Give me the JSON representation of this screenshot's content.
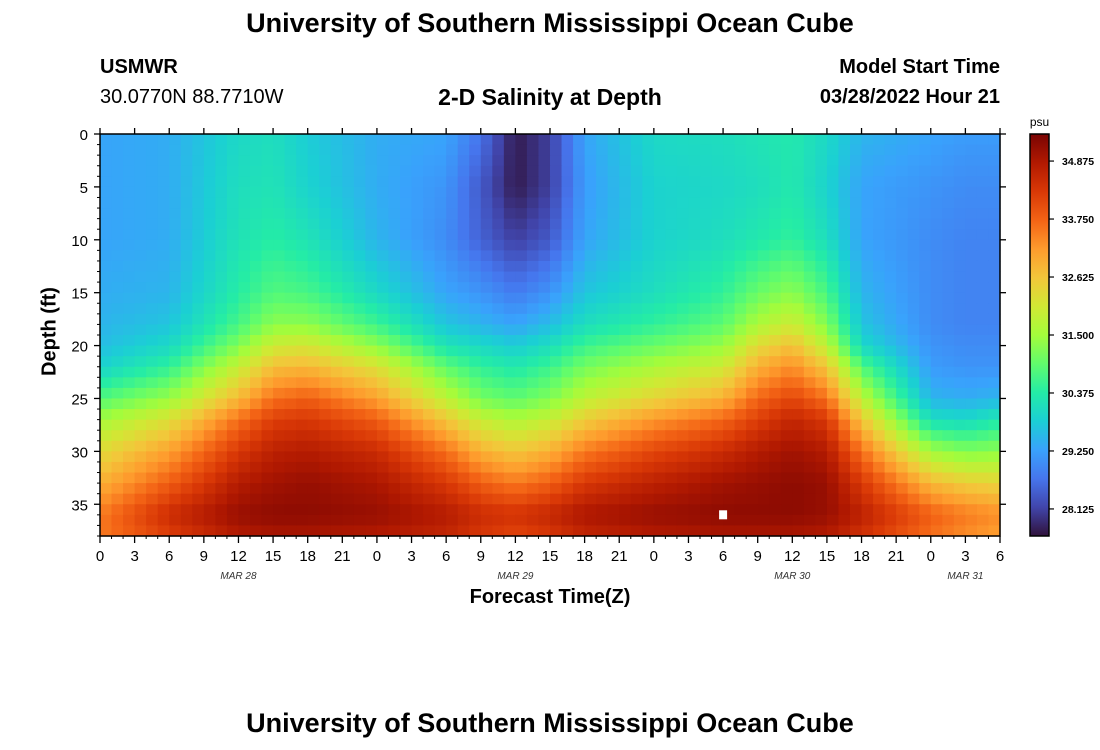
{
  "page_title": "University of Southern Mississippi Ocean Cube",
  "station": {
    "name": "USMWR",
    "coords": "30.0770N  88.7710W"
  },
  "model": {
    "label": "Model Start Time",
    "start": "03/28/2022 Hour 21"
  },
  "footer_title": "University of Southern Mississippi Ocean Cube",
  "chart_data": {
    "type": "heatmap",
    "title": "2-D Salinity at Depth",
    "xlabel": "Forecast Time(Z)",
    "ylabel": "Depth (ft)",
    "colorbar_unit": "psu",
    "colorbar_ticks": [
      "28.125",
      "29.250",
      "30.375",
      "31.500",
      "32.625",
      "33.750",
      "34.875"
    ],
    "colorbar_range": [
      27.6,
      35.4
    ],
    "y_ticks": [
      "0",
      "5",
      "10",
      "15",
      "20",
      "25",
      "30",
      "35"
    ],
    "ylim": [
      0,
      38
    ],
    "x_ticks": [
      "0",
      "3",
      "6",
      "9",
      "12",
      "15",
      "18",
      "21",
      "0",
      "3",
      "6",
      "9",
      "12",
      "15",
      "18",
      "21",
      "0",
      "3",
      "6",
      "9",
      "12",
      "15",
      "18",
      "21",
      "0",
      "3",
      "6"
    ],
    "x_range_hours": [
      0,
      78
    ],
    "date_labels": [
      {
        "label": "MAR 28",
        "hour": 12
      },
      {
        "label": "MAR 29",
        "hour": 36
      },
      {
        "label": "MAR 30",
        "hour": 60
      },
      {
        "label": "MAR 31",
        "hour": 75
      }
    ],
    "colormap": [
      "#30123b",
      "#4145ab",
      "#4675ed",
      "#39a2fc",
      "#1bcfd4",
      "#24eca6",
      "#61fc6c",
      "#a4fc3b",
      "#d1e834",
      "#f3c63a",
      "#fe9b2d",
      "#f36315",
      "#d93806",
      "#b11901",
      "#7a0403"
    ],
    "profiles": {
      "hours": [
        0,
        6,
        12,
        15,
        18,
        24,
        30,
        33,
        36,
        39,
        42,
        48,
        54,
        57,
        60,
        63,
        66,
        72,
        75,
        78
      ],
      "depth_ft": [
        0,
        5,
        10,
        15,
        18,
        20,
        22,
        25,
        27,
        30,
        33,
        36,
        38
      ],
      "salinity_psu": [
        [
          29.3,
          29.3,
          29.3,
          29.4,
          29.5,
          29.6,
          29.9,
          30.8,
          31.5,
          32.3,
          32.9,
          33.5,
          33.5
        ],
        [
          29.4,
          29.4,
          29.4,
          29.5,
          29.7,
          30.0,
          30.5,
          31.4,
          32.2,
          33.1,
          33.8,
          34.5,
          34.2
        ],
        [
          30.0,
          30.1,
          30.2,
          30.4,
          30.7,
          31.2,
          31.9,
          32.8,
          33.6,
          34.3,
          34.8,
          35.1,
          34.8
        ],
        [
          30.1,
          30.2,
          30.4,
          30.8,
          31.3,
          32.0,
          32.7,
          33.6,
          34.2,
          34.7,
          35.0,
          35.2,
          34.9
        ],
        [
          29.8,
          29.9,
          30.2,
          30.7,
          31.3,
          32.1,
          32.8,
          33.8,
          34.3,
          34.8,
          35.1,
          35.2,
          34.9
        ],
        [
          29.4,
          29.4,
          29.5,
          30.0,
          30.6,
          31.3,
          32.2,
          33.1,
          33.8,
          34.5,
          34.9,
          35.1,
          34.8
        ],
        [
          29.3,
          29.1,
          29.0,
          29.3,
          29.7,
          30.2,
          30.9,
          31.8,
          32.6,
          33.6,
          34.3,
          34.8,
          34.6
        ],
        [
          28.7,
          28.4,
          28.5,
          29.1,
          29.5,
          30.0,
          30.5,
          31.1,
          31.9,
          32.9,
          33.8,
          34.5,
          34.3
        ],
        [
          27.7,
          27.7,
          28.1,
          28.8,
          29.3,
          29.8,
          30.3,
          30.9,
          31.6,
          32.6,
          33.5,
          34.4,
          34.1
        ],
        [
          28.1,
          28.1,
          28.4,
          29.1,
          29.6,
          30.1,
          30.6,
          31.2,
          31.9,
          32.9,
          33.8,
          34.6,
          34.3
        ],
        [
          29.3,
          29.2,
          29.3,
          29.7,
          30.1,
          30.6,
          31.1,
          31.8,
          32.5,
          33.5,
          34.3,
          34.9,
          34.6
        ],
        [
          30.0,
          29.9,
          29.9,
          30.1,
          30.5,
          31.0,
          31.6,
          32.4,
          33.2,
          34.1,
          34.7,
          35.1,
          34.8
        ],
        [
          30.1,
          30.0,
          30.1,
          30.5,
          30.9,
          31.4,
          32.0,
          32.9,
          33.7,
          34.5,
          35.0,
          35.2,
          34.9
        ],
        [
          30.2,
          30.1,
          30.3,
          31.0,
          31.6,
          32.3,
          32.9,
          33.7,
          34.2,
          34.8,
          35.1,
          35.2,
          34.9
        ],
        [
          30.3,
          30.3,
          30.5,
          31.3,
          32.0,
          32.7,
          33.3,
          34.1,
          34.6,
          35.0,
          35.2,
          35.2,
          34.9
        ],
        [
          30.0,
          29.9,
          30.1,
          30.7,
          31.2,
          31.8,
          32.6,
          33.6,
          34.3,
          34.8,
          35.1,
          35.1,
          34.8
        ],
        [
          29.5,
          29.3,
          29.3,
          29.5,
          29.7,
          30.0,
          30.8,
          31.8,
          32.6,
          33.6,
          34.3,
          34.7,
          34.4
        ],
        [
          29.3,
          29.1,
          29.0,
          29.0,
          29.0,
          29.1,
          29.2,
          29.5,
          30.1,
          31.5,
          32.8,
          33.8,
          33.6
        ],
        [
          29.2,
          29.0,
          28.9,
          28.9,
          28.9,
          29.0,
          29.1,
          29.4,
          30.0,
          31.2,
          32.5,
          33.5,
          33.3
        ],
        [
          29.2,
          29.0,
          28.9,
          28.9,
          28.9,
          29.0,
          29.1,
          29.5,
          30.3,
          31.3,
          32.4,
          33.3,
          33.1
        ]
      ]
    },
    "missing_cell": {
      "hour": 54,
      "depth_ft": 36
    }
  }
}
